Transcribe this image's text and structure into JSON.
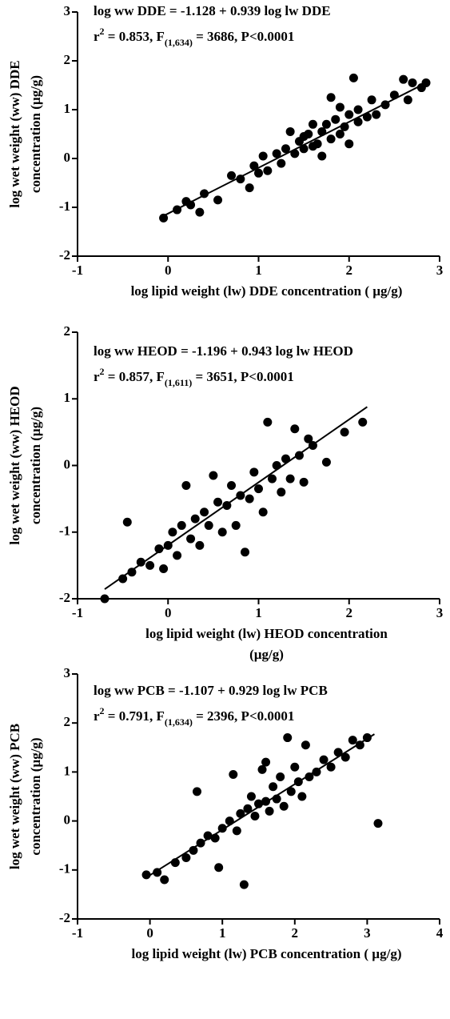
{
  "chart_data": [
    {
      "type": "scatter",
      "equation": "log ww DDE = -1.128 + 0.939 log lw DDE",
      "stats": [
        "r",
        "2",
        " = 0.853, F",
        "(1,634)",
        " = 3686, P<0.0001"
      ],
      "y_label": [
        "log wet weight (ww) DDE",
        "concentration (µg/g)"
      ],
      "x_label": [
        "log lipid weight (lw) DDE concentration ( µg/g)"
      ],
      "xlim": [
        -1,
        3
      ],
      "xticks": [
        -1,
        0,
        1,
        2,
        3
      ],
      "ylim": [
        -2,
        3
      ],
      "yticks": [
        -2,
        -1,
        0,
        1,
        2,
        3
      ],
      "color": "#000000",
      "x": [
        -0.05,
        0.1,
        0.2,
        0.25,
        0.35,
        0.4,
        0.55,
        0.7,
        0.8,
        0.9,
        0.95,
        1.0,
        1.05,
        1.1,
        1.2,
        1.25,
        1.3,
        1.35,
        1.4,
        1.45,
        1.5,
        1.5,
        1.55,
        1.6,
        1.6,
        1.65,
        1.7,
        1.7,
        1.75,
        1.8,
        1.8,
        1.85,
        1.9,
        1.9,
        1.95,
        2.0,
        2.0,
        2.05,
        2.1,
        2.1,
        2.2,
        2.25,
        2.3,
        2.4,
        2.5,
        2.6,
        2.65,
        2.7,
        2.8,
        2.85
      ],
      "values": [
        -1.22,
        -1.05,
        -0.88,
        -0.95,
        -1.1,
        -0.72,
        -0.85,
        -0.35,
        -0.42,
        -0.6,
        -0.15,
        -0.3,
        0.05,
        -0.25,
        0.1,
        -0.1,
        0.2,
        0.55,
        0.1,
        0.35,
        0.2,
        0.45,
        0.5,
        0.25,
        0.7,
        0.3,
        0.55,
        0.05,
        0.7,
        1.25,
        0.4,
        0.8,
        0.5,
        1.05,
        0.65,
        0.9,
        0.3,
        1.65,
        0.75,
        1.0,
        0.85,
        1.2,
        0.9,
        1.1,
        1.3,
        1.62,
        1.2,
        1.55,
        1.45,
        1.55
      ],
      "fit": {
        "x": [
          -0.05,
          2.85
        ],
        "values": [
          -1.175,
          1.548
        ]
      }
    },
    {
      "type": "scatter",
      "equation": "log ww HEOD = -1.196 + 0.943 log lw HEOD",
      "stats": [
        "r",
        "2",
        " = 0.857, F",
        "(1,611)",
        " = 3651, P<0.0001"
      ],
      "y_label": [
        "log wet weight (ww)  HEOD",
        "concentration  (µg/g)"
      ],
      "x_label": [
        "log lipid weight (lw) HEOD concentration",
        "(µg/g)"
      ],
      "xlim": [
        -1,
        3
      ],
      "xticks": [
        -1,
        0,
        1,
        2,
        3
      ],
      "ylim": [
        -2,
        2
      ],
      "yticks": [
        -2,
        -1,
        0,
        1,
        2
      ],
      "color": "#000000",
      "x": [
        -0.7,
        -0.5,
        -0.45,
        -0.4,
        -0.3,
        -0.2,
        -0.1,
        -0.05,
        0.0,
        0.05,
        0.1,
        0.15,
        0.2,
        0.25,
        0.3,
        0.35,
        0.4,
        0.45,
        0.5,
        0.55,
        0.6,
        0.65,
        0.7,
        0.75,
        0.8,
        0.85,
        0.9,
        0.95,
        1.0,
        1.05,
        1.1,
        1.15,
        1.2,
        1.25,
        1.3,
        1.35,
        1.4,
        1.45,
        1.5,
        1.55,
        1.6,
        1.75,
        1.95,
        2.15
      ],
      "values": [
        -2.0,
        -1.7,
        -0.85,
        -1.6,
        -1.45,
        -1.5,
        -1.25,
        -1.55,
        -1.2,
        -1.0,
        -1.35,
        -0.9,
        -0.3,
        -1.1,
        -0.8,
        -1.2,
        -0.7,
        -0.9,
        -0.15,
        -0.55,
        -1.0,
        -0.6,
        -0.3,
        -0.9,
        -0.45,
        -1.3,
        -0.5,
        -0.1,
        -0.35,
        -0.7,
        0.65,
        -0.2,
        0.0,
        -0.4,
        0.1,
        -0.2,
        0.55,
        0.15,
        -0.25,
        0.4,
        0.3,
        0.05,
        0.5,
        0.65
      ],
      "fit": {
        "x": [
          -0.7,
          2.2
        ],
        "values": [
          -1.856,
          0.879
        ]
      }
    },
    {
      "type": "scatter",
      "equation": "log ww PCB = -1.107 + 0.929 log lw PCB",
      "stats": [
        "r",
        "2",
        " = 0.791, F",
        "(1,634)",
        " = 2396, P<0.0001"
      ],
      "y_label": [
        "log wet weight (ww)  PCB",
        "concentration  (µg/g)"
      ],
      "x_label": [
        "log lipid weight (lw) PCB concentration ( µg/g)"
      ],
      "xlim": [
        -1,
        4
      ],
      "xticks": [
        -1,
        0,
        1,
        2,
        3,
        4
      ],
      "ylim": [
        -2,
        3
      ],
      "yticks": [
        -2,
        -1,
        0,
        1,
        2,
        3
      ],
      "color": "#000000",
      "x": [
        -0.05,
        0.1,
        0.2,
        0.35,
        0.5,
        0.6,
        0.65,
        0.7,
        0.8,
        0.9,
        0.95,
        1.0,
        1.1,
        1.15,
        1.2,
        1.25,
        1.3,
        1.35,
        1.4,
        1.45,
        1.5,
        1.55,
        1.6,
        1.65,
        1.7,
        1.75,
        1.8,
        1.85,
        1.9,
        1.95,
        2.0,
        2.05,
        2.1,
        2.15,
        2.2,
        2.3,
        2.4,
        2.5,
        2.6,
        2.7,
        2.8,
        2.9,
        3.0,
        3.15,
        1.6
      ],
      "values": [
        -1.1,
        -1.05,
        -1.2,
        -0.85,
        -0.75,
        -0.6,
        0.6,
        -0.45,
        -0.3,
        -0.35,
        -0.95,
        -0.15,
        0.0,
        0.95,
        -0.2,
        0.15,
        -1.3,
        0.25,
        0.5,
        0.1,
        0.35,
        1.05,
        0.4,
        0.2,
        0.7,
        0.45,
        0.9,
        0.3,
        1.7,
        0.6,
        1.1,
        0.8,
        0.5,
        1.55,
        0.9,
        1.0,
        1.25,
        1.1,
        1.4,
        1.3,
        1.65,
        1.55,
        1.7,
        -0.05,
        1.2
      ],
      "fit": {
        "x": [
          -0.05,
          3.1
        ],
        "values": [
          -1.153,
          1.773
        ]
      }
    }
  ]
}
